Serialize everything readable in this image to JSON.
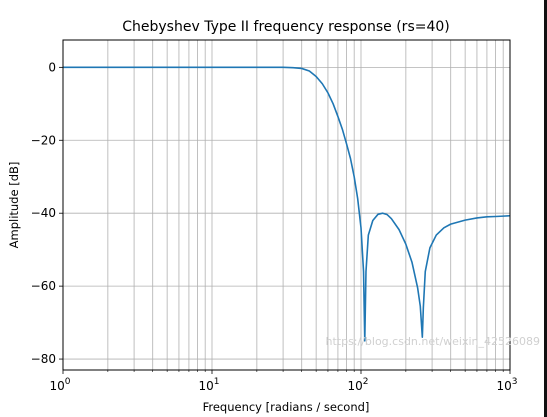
{
  "chart_data": {
    "type": "line",
    "title": "Chebyshev  Type II frequency response (rs=40)",
    "xlabel": "Frequency [radians / second]",
    "ylabel": "Amplitude [dB]",
    "xscale": "log",
    "xlim": [
      1,
      1000
    ],
    "ylim": [
      -83,
      7.5
    ],
    "grid": "both",
    "x_ticks": [
      {
        "value": 1,
        "base": "10",
        "exp": "0"
      },
      {
        "value": 10,
        "base": "10",
        "exp": "1"
      },
      {
        "value": 100,
        "base": "10",
        "exp": "2"
      },
      {
        "value": 1000,
        "base": "10",
        "exp": "3"
      }
    ],
    "y_ticks": [
      {
        "value": 0,
        "label": "0"
      },
      {
        "value": -20,
        "label": "−20"
      },
      {
        "value": -40,
        "label": "−40"
      },
      {
        "value": -60,
        "label": "−60"
      },
      {
        "value": -80,
        "label": "−80"
      }
    ],
    "series": [
      {
        "color": "#1f77b4",
        "x": [
          1,
          5,
          10,
          20,
          30,
          35,
          40,
          45,
          50,
          55,
          60,
          65,
          70,
          75,
          80,
          85,
          90,
          95,
          100,
          104,
          106,
          108,
          112,
          120,
          130,
          140,
          150,
          160,
          180,
          200,
          220,
          240,
          250,
          258,
          262,
          270,
          290,
          320,
          360,
          400,
          500,
          600,
          700,
          800,
          900,
          1000
        ],
        "y": [
          0,
          0,
          0,
          0,
          0,
          -0.1,
          -0.3,
          -1.0,
          -2.5,
          -4.5,
          -7.0,
          -10.0,
          -13.5,
          -17.0,
          -21.0,
          -25.0,
          -30.0,
          -36.0,
          -44.0,
          -56.0,
          -75.0,
          -56.0,
          -46.0,
          -42.0,
          -40.3,
          -40.0,
          -40.4,
          -41.5,
          -44.5,
          -48.5,
          -53.5,
          -60.5,
          -65.5,
          -74.0,
          -66.0,
          -56.0,
          -49.5,
          -46.0,
          -44.0,
          -43.0,
          -41.9,
          -41.3,
          -41.0,
          -40.9,
          -40.8,
          -40.7
        ]
      }
    ]
  },
  "watermark": "https://blog.csdn.net/weixin_42526089"
}
